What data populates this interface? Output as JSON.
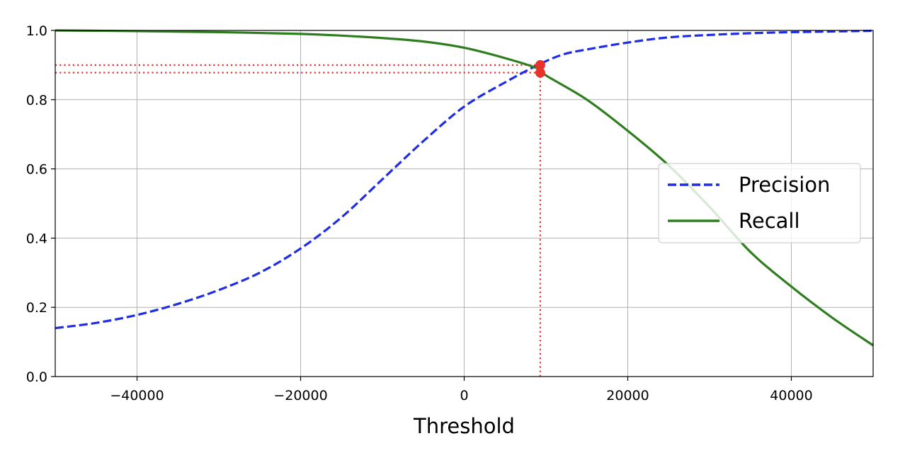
{
  "chart_data": {
    "type": "line",
    "xlabel": "Threshold",
    "ylabel": "",
    "xlim": [
      -50000,
      50000
    ],
    "ylim": [
      0.0,
      1.0
    ],
    "grid": true,
    "legend_position": "center-right",
    "x_ticks": [
      -40000,
      -20000,
      0,
      20000,
      40000
    ],
    "x_tick_labels": [
      "−40000",
      "−20000",
      "0",
      "20000",
      "40000"
    ],
    "y_ticks": [
      0.0,
      0.2,
      0.4,
      0.6,
      0.8,
      1.0
    ],
    "y_tick_labels": [
      "0.0",
      "0.2",
      "0.4",
      "0.6",
      "0.8",
      "1.0"
    ],
    "series": [
      {
        "name": "Precision",
        "color": "#1f2ee6",
        "style": "dashed",
        "x": [
          -50000,
          -45000,
          -40000,
          -35000,
          -30000,
          -25000,
          -20000,
          -15000,
          -10000,
          -5000,
          0,
          5000,
          9000,
          12000,
          15000,
          20000,
          25000,
          30000,
          35000,
          40000,
          45000,
          50000
        ],
        "y": [
          0.14,
          0.155,
          0.178,
          0.21,
          0.25,
          0.3,
          0.37,
          0.46,
          0.57,
          0.68,
          0.78,
          0.85,
          0.9,
          0.93,
          0.945,
          0.965,
          0.98,
          0.987,
          0.992,
          0.995,
          0.997,
          0.999
        ]
      },
      {
        "name": "Recall",
        "color": "#2e7d1e",
        "style": "solid",
        "x": [
          -50000,
          -40000,
          -30000,
          -20000,
          -15000,
          -10000,
          -5000,
          0,
          5000,
          9000,
          10000,
          15000,
          20000,
          25000,
          30000,
          35000,
          40000,
          45000,
          50000
        ],
        "y": [
          1.0,
          0.998,
          0.995,
          0.99,
          0.985,
          0.978,
          0.968,
          0.95,
          0.92,
          0.89,
          0.87,
          0.8,
          0.71,
          0.61,
          0.49,
          0.36,
          0.26,
          0.17,
          0.09
        ]
      }
    ],
    "annotations": {
      "threshold": 9300,
      "precision_at_threshold": 0.9,
      "recall_at_threshold": 0.878,
      "guide_color": "#e8322a",
      "guide_style": "dotted"
    }
  }
}
